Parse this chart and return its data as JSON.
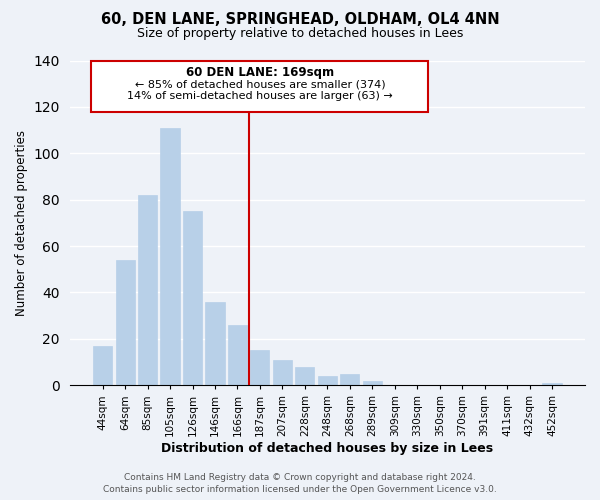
{
  "title": "60, DEN LANE, SPRINGHEAD, OLDHAM, OL4 4NN",
  "subtitle": "Size of property relative to detached houses in Lees",
  "xlabel": "Distribution of detached houses by size in Lees",
  "ylabel": "Number of detached properties",
  "bar_color": "#b8d0e8",
  "bar_edge_color": "#b8d0e8",
  "vline_color": "#cc0000",
  "categories": [
    "44sqm",
    "64sqm",
    "85sqm",
    "105sqm",
    "126sqm",
    "146sqm",
    "166sqm",
    "187sqm",
    "207sqm",
    "228sqm",
    "248sqm",
    "268sqm",
    "289sqm",
    "309sqm",
    "330sqm",
    "350sqm",
    "370sqm",
    "391sqm",
    "411sqm",
    "432sqm",
    "452sqm"
  ],
  "values": [
    17,
    54,
    82,
    111,
    75,
    36,
    26,
    15,
    11,
    8,
    4,
    5,
    2,
    0,
    0,
    0,
    0,
    0,
    0,
    0,
    1
  ],
  "ylim": [
    0,
    140
  ],
  "yticks": [
    0,
    20,
    40,
    60,
    80,
    100,
    120,
    140
  ],
  "vline_index": 6.5,
  "annotation_title": "60 DEN LANE: 169sqm",
  "annotation_line1": "← 85% of detached houses are smaller (374)",
  "annotation_line2": "14% of semi-detached houses are larger (63) →",
  "footer1": "Contains HM Land Registry data © Crown copyright and database right 2024.",
  "footer2": "Contains public sector information licensed under the Open Government Licence v3.0.",
  "background_color": "#eef2f8",
  "annotation_box_color": "#ffffff",
  "annotation_box_edge": "#cc0000",
  "grid_color": "#ffffff"
}
